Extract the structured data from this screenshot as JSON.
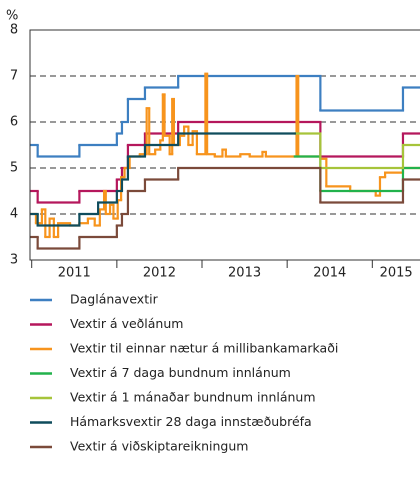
{
  "chart_data": {
    "type": "line",
    "step": "post",
    "y_label": "%",
    "xlim": [
      2010.98,
      2015.56
    ],
    "xticks": [
      {
        "value": 2011,
        "label": "2011"
      },
      {
        "value": 2012,
        "label": "2012"
      },
      {
        "value": 2013,
        "label": "2013"
      },
      {
        "value": 2014,
        "label": "2014"
      },
      {
        "value": 2015,
        "label": "2015"
      }
    ],
    "ylim": [
      3,
      8
    ],
    "yticks": [
      3,
      4,
      5,
      6,
      7,
      8
    ],
    "grid": true,
    "legend": "bottom",
    "series": [
      {
        "name": "Daglánavextir",
        "color": "#3d7fc1",
        "x": [
          2010.98,
          2011.07,
          2011.56,
          2012.0,
          2012.06,
          2012.13,
          2012.33,
          2012.72,
          2014.39,
          2015.36
        ],
        "values": [
          5.5,
          5.25,
          5.5,
          5.75,
          6.0,
          6.5,
          6.75,
          7.0,
          6.25,
          6.75
        ]
      },
      {
        "name": "Vextir á veðlánum",
        "color": "#b5175c",
        "x": [
          2010.98,
          2011.07,
          2011.56,
          2012.0,
          2012.06,
          2012.13,
          2012.33,
          2012.72,
          2014.39,
          2015.36
        ],
        "values": [
          4.5,
          4.25,
          4.5,
          4.75,
          5.0,
          5.5,
          5.75,
          6.0,
          5.25,
          5.75
        ]
      },
      {
        "name": "Vextir til einnar nætur á millibankamarkaði",
        "color": "#f7941d",
        "x": [
          2010.98,
          2011.05,
          2011.12,
          2011.16,
          2011.21,
          2011.26,
          2011.31,
          2011.45,
          2011.56,
          2011.66,
          2011.74,
          2011.8,
          2011.85,
          2011.87,
          2011.92,
          2011.96,
          2012.01,
          2012.05,
          2012.09,
          2012.15,
          2012.27,
          2012.35,
          2012.38,
          2012.45,
          2012.51,
          2012.54,
          2012.56,
          2012.62,
          2012.65,
          2012.67,
          2012.74,
          2012.79,
          2012.84,
          2012.89,
          2012.94,
          2013.04,
          2013.06,
          2013.15,
          2013.24,
          2013.28,
          2013.45,
          2013.56,
          2013.71,
          2013.75,
          2014.11,
          2014.13,
          2014.39,
          2014.46,
          2014.74,
          2015.04,
          2015.09,
          2015.15,
          2015.36
        ],
        "values": [
          4.0,
          3.8,
          4.1,
          3.5,
          3.9,
          3.5,
          3.8,
          3.75,
          3.8,
          3.9,
          3.75,
          4.1,
          4.5,
          4.0,
          4.2,
          3.9,
          4.3,
          4.8,
          5.0,
          5.25,
          5.3,
          6.3,
          5.3,
          5.4,
          5.6,
          6.6,
          5.7,
          5.3,
          6.5,
          5.5,
          5.7,
          5.9,
          5.5,
          5.8,
          5.3,
          7.05,
          5.3,
          5.25,
          5.4,
          5.25,
          5.3,
          5.25,
          5.35,
          5.25,
          7.0,
          5.25,
          5.2,
          4.6,
          4.5,
          4.4,
          4.8,
          4.9,
          5.0
        ]
      },
      {
        "name": "Vextir á 7 daga bundnum innlánum",
        "color": "#22b24c",
        "x": [
          2014.09,
          2014.39,
          2015.36
        ],
        "values": [
          5.25,
          4.5,
          5.0
        ]
      },
      {
        "name": "Vextir á 1 mánaðar bundnum innlánum",
        "color": "#a6c43a",
        "x": [
          2014.09,
          2014.39,
          2015.36
        ],
        "values": [
          5.75,
          5.0,
          5.5
        ]
      },
      {
        "name": "Hámarksvextir 28 daga innstæðubréfa",
        "color": "#0f4c5c",
        "x": [
          2010.98,
          2011.07,
          2011.56,
          2011.78,
          2012.0,
          2012.06,
          2012.13,
          2012.33,
          2012.72,
          2014.09
        ],
        "values": [
          4.0,
          3.75,
          4.0,
          4.25,
          4.5,
          4.75,
          5.25,
          5.5,
          5.75,
          null
        ]
      },
      {
        "name": "Vextir á viðskiptareikningum",
        "color": "#7b4a3a",
        "x": [
          2010.98,
          2011.07,
          2011.56,
          2012.0,
          2012.06,
          2012.13,
          2012.33,
          2012.72,
          2014.39,
          2015.36
        ],
        "values": [
          3.5,
          3.25,
          3.5,
          3.75,
          4.0,
          4.5,
          4.75,
          5.0,
          4.25,
          4.75
        ]
      }
    ]
  }
}
